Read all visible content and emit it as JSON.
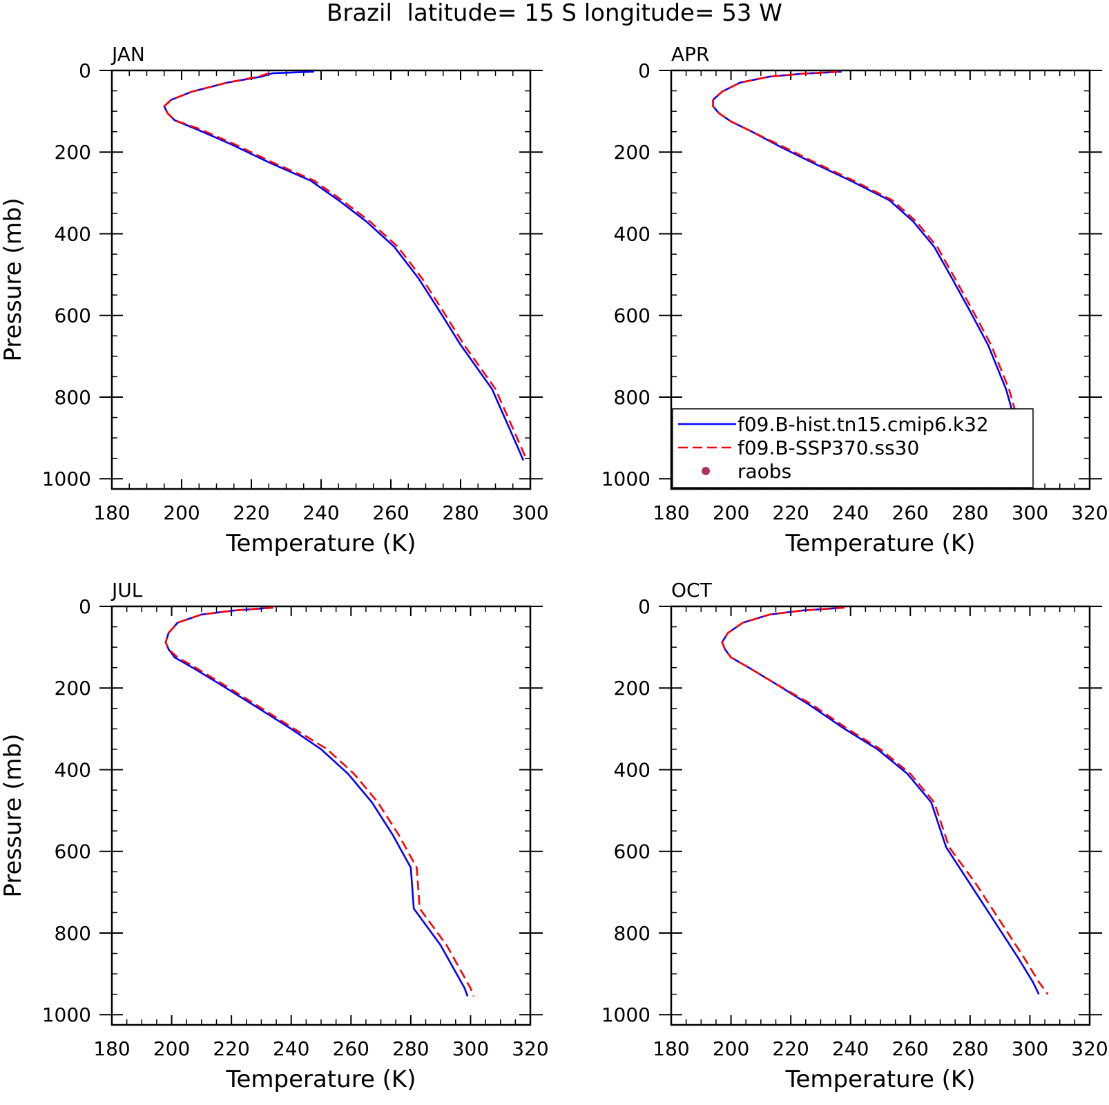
{
  "figure_title": "Brazil  latitude= 15 S longitude= 53 W",
  "colors": {
    "hist": "#0000ff",
    "ssp": "#ff0000",
    "raobs": "#b03060"
  },
  "legend": {
    "panel": 1,
    "entries": [
      {
        "label": "f09.B-hist.tn15.cmip6.k32",
        "style": "solid",
        "color": "#0000ff"
      },
      {
        "label": "f09.B-SSP370.ss30",
        "style": "dashed",
        "color": "#ff0000"
      },
      {
        "label": "raobs",
        "style": "dot",
        "color": "#b03060"
      }
    ]
  },
  "chart_data": [
    {
      "type": "line",
      "panel_label": "JAN",
      "xlabel": "Temperature (K)",
      "ylabel": "Pressure (mb)",
      "xlim": [
        180,
        300
      ],
      "ylim": [
        1025,
        0
      ],
      "xticks": [
        180,
        200,
        220,
        240,
        260,
        280,
        300
      ],
      "yticks": [
        0,
        200,
        400,
        600,
        800,
        1000
      ],
      "series": [
        {
          "name": "f09.B-hist.tn15.cmip6.k32",
          "style": "solid",
          "x": [
            238,
            226,
            223,
            213,
            203,
            197,
            195,
            196,
            198,
            204,
            214,
            225,
            237,
            245,
            253,
            261,
            268,
            274,
            280,
            289,
            297,
            298
          ],
          "y": [
            3,
            7,
            15,
            30,
            52,
            72,
            88,
            105,
            122,
            143,
            180,
            225,
            270,
            318,
            370,
            432,
            510,
            590,
            672,
            780,
            935,
            955
          ]
        },
        {
          "name": "f09.B-SSP370.ss30",
          "style": "dashed",
          "x": [
            225,
            222,
            213,
            203,
            197,
            195,
            196,
            198,
            205,
            215,
            226,
            238,
            246,
            254,
            262,
            269,
            275,
            281,
            290,
            298,
            299
          ],
          "y": [
            7,
            15,
            30,
            52,
            72,
            88,
            105,
            122,
            143,
            180,
            225,
            270,
            318,
            370,
            432,
            510,
            590,
            672,
            780,
            935,
            955
          ]
        }
      ]
    },
    {
      "type": "line",
      "panel_label": "APR",
      "xlabel": "Temperature (K)",
      "ylabel": "",
      "xlim": [
        180,
        320
      ],
      "ylim": [
        1025,
        0
      ],
      "xticks": [
        180,
        200,
        220,
        240,
        260,
        280,
        300,
        320
      ],
      "yticks": [
        0,
        200,
        400,
        600,
        800,
        1000
      ],
      "series": [
        {
          "name": "f09.B-hist.tn15.cmip6.k32",
          "style": "solid",
          "x": [
            237,
            224,
            213,
            203,
            197,
            194,
            194,
            196,
            200,
            207,
            216,
            227,
            240,
            253,
            261,
            268,
            274,
            280,
            286,
            292,
            298,
            299
          ],
          "y": [
            3,
            8,
            15,
            30,
            52,
            72,
            88,
            105,
            125,
            150,
            185,
            225,
            270,
            318,
            370,
            432,
            510,
            590,
            672,
            780,
            935,
            955
          ]
        },
        {
          "name": "f09.B-SSP370.ss30",
          "style": "dashed",
          "x": [
            236,
            224,
            213,
            203,
            197,
            194,
            194,
            196,
            200,
            207,
            217,
            228,
            241,
            254,
            262,
            269,
            275,
            281,
            287,
            293,
            299,
            300
          ],
          "y": [
            3,
            8,
            15,
            30,
            52,
            72,
            88,
            105,
            125,
            150,
            185,
            225,
            270,
            318,
            370,
            432,
            510,
            590,
            672,
            780,
            935,
            955
          ]
        }
      ]
    },
    {
      "type": "line",
      "panel_label": "JUL",
      "xlabel": "Temperature (K)",
      "ylabel": "Pressure (mb)",
      "xlim": [
        180,
        320
      ],
      "ylim": [
        1025,
        0
      ],
      "xticks": [
        180,
        200,
        220,
        240,
        260,
        280,
        300,
        320
      ],
      "yticks": [
        0,
        200,
        400,
        600,
        800,
        1000
      ],
      "series": [
        {
          "name": "f09.B-hist.tn15.cmip6.k32",
          "style": "solid",
          "x": [
            234,
            221,
            210,
            202,
            199,
            198,
            199,
            201,
            207,
            216,
            227,
            240,
            250,
            259,
            267,
            274,
            280,
            281,
            290,
            298,
            299
          ],
          "y": [
            3,
            10,
            20,
            40,
            65,
            88,
            105,
            125,
            150,
            190,
            240,
            300,
            350,
            410,
            480,
            560,
            640,
            740,
            830,
            935,
            955
          ]
        },
        {
          "name": "f09.B-SSP370.ss30",
          "style": "dashed",
          "x": [
            234,
            221,
            210,
            202,
            199,
            198,
            199,
            202,
            208,
            217,
            228,
            241,
            252,
            261,
            269,
            276,
            282,
            283,
            292,
            300,
            301
          ],
          "y": [
            3,
            10,
            20,
            40,
            65,
            88,
            105,
            125,
            150,
            190,
            240,
            300,
            350,
            410,
            480,
            560,
            640,
            740,
            830,
            935,
            955
          ]
        }
      ]
    },
    {
      "type": "line",
      "panel_label": "OCT",
      "xlabel": "Temperature (K)",
      "ylabel": "",
      "xlim": [
        180,
        320
      ],
      "ylim": [
        1025,
        0
      ],
      "xticks": [
        180,
        200,
        220,
        240,
        260,
        280,
        300,
        320
      ],
      "yticks": [
        0,
        200,
        400,
        600,
        800,
        1000
      ],
      "series": [
        {
          "name": "f09.B-hist.tn15.cmip6.k32",
          "style": "solid",
          "x": [
            238,
            224,
            213,
            204,
            199,
            197,
            198,
            200,
            206,
            215,
            226,
            238,
            249,
            259,
            267,
            272,
            280,
            288,
            296,
            301,
            303
          ],
          "y": [
            3,
            10,
            20,
            40,
            65,
            88,
            105,
            125,
            150,
            190,
            240,
            300,
            350,
            410,
            480,
            590,
            680,
            770,
            860,
            920,
            950
          ]
        },
        {
          "name": "f09.B-SSP370.ss30",
          "style": "dashed",
          "x": [
            238,
            224,
            213,
            204,
            199,
            197,
            198,
            200,
            206,
            215,
            227,
            239,
            250,
            260,
            268,
            273,
            282,
            290,
            298,
            303,
            306
          ],
          "y": [
            3,
            10,
            20,
            40,
            65,
            88,
            105,
            125,
            150,
            190,
            240,
            300,
            350,
            410,
            480,
            590,
            680,
            770,
            860,
            920,
            950
          ]
        }
      ]
    }
  ]
}
